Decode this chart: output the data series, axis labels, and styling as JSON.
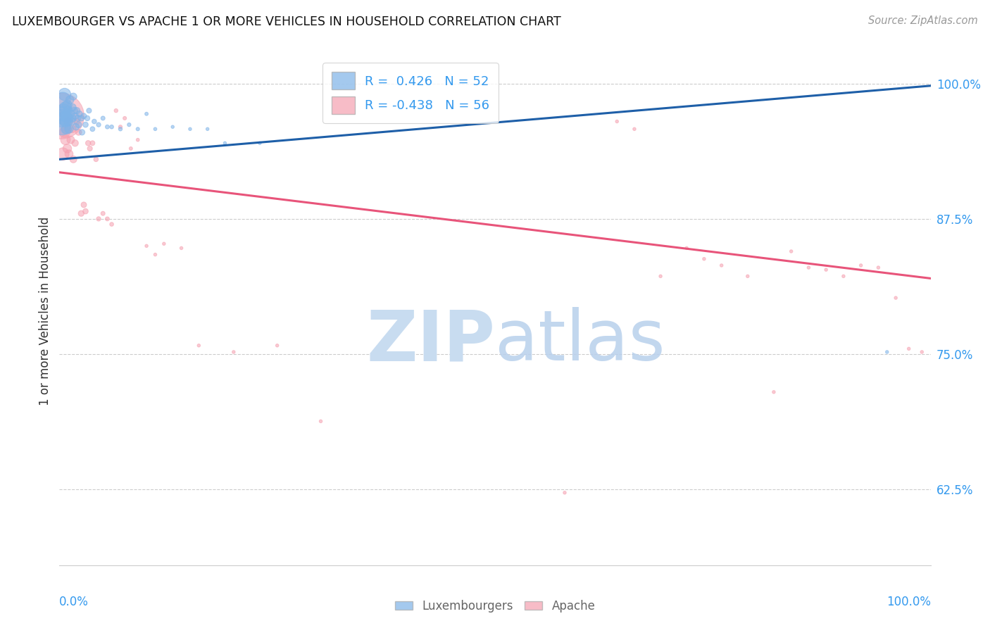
{
  "title": "LUXEMBOURGER VS APACHE 1 OR MORE VEHICLES IN HOUSEHOLD CORRELATION CHART",
  "source": "Source: ZipAtlas.com",
  "ylabel": "1 or more Vehicles in Household",
  "xlim": [
    0.0,
    1.0
  ],
  "ylim": [
    0.555,
    1.025
  ],
  "yticks": [
    0.625,
    0.75,
    0.875,
    1.0
  ],
  "ytick_labels": [
    "62.5%",
    "75.0%",
    "87.5%",
    "100.0%"
  ],
  "legend_r_blue": "0.426",
  "legend_n_blue": "52",
  "legend_r_pink": "-0.438",
  "legend_n_pink": "56",
  "blue_color": "#7EB3E8",
  "pink_color": "#F5A0B0",
  "trend_blue_color": "#1E5FA8",
  "trend_pink_color": "#E8547A",
  "watermark_zip_color": "#C8DCF0",
  "watermark_atlas_color": "#B8D0EC",
  "blue_trend_x0": 0.0,
  "blue_trend_y0": 0.93,
  "blue_trend_x1": 1.0,
  "blue_trend_y1": 0.998,
  "pink_trend_x0": 0.0,
  "pink_trend_y0": 0.918,
  "pink_trend_x1": 1.0,
  "pink_trend_y1": 0.82,
  "blue_points_x": [
    0.002,
    0.003,
    0.004,
    0.004,
    0.005,
    0.005,
    0.006,
    0.007,
    0.007,
    0.008,
    0.008,
    0.009,
    0.01,
    0.01,
    0.011,
    0.011,
    0.012,
    0.013,
    0.014,
    0.015,
    0.015,
    0.016,
    0.017,
    0.018,
    0.019,
    0.02,
    0.021,
    0.022,
    0.023,
    0.025,
    0.026,
    0.028,
    0.03,
    0.032,
    0.034,
    0.038,
    0.04,
    0.045,
    0.05,
    0.055,
    0.06,
    0.07,
    0.08,
    0.09,
    0.1,
    0.11,
    0.13,
    0.15,
    0.17,
    0.19,
    0.23,
    0.95
  ],
  "blue_points_y": [
    0.968,
    0.96,
    0.985,
    0.972,
    0.975,
    0.968,
    0.99,
    0.978,
    0.965,
    0.97,
    0.958,
    0.98,
    0.965,
    0.975,
    0.968,
    0.958,
    0.985,
    0.972,
    0.965,
    0.978,
    0.968,
    0.988,
    0.975,
    0.97,
    0.96,
    0.975,
    0.968,
    0.962,
    0.972,
    0.968,
    0.955,
    0.97,
    0.962,
    0.968,
    0.975,
    0.958,
    0.965,
    0.962,
    0.968,
    0.96,
    0.96,
    0.958,
    0.962,
    0.958,
    0.972,
    0.958,
    0.96,
    0.958,
    0.958,
    0.945,
    0.945,
    0.752
  ],
  "blue_sizes": [
    320,
    280,
    240,
    220,
    200,
    180,
    160,
    140,
    130,
    120,
    110,
    100,
    90,
    85,
    80,
    75,
    70,
    65,
    60,
    58,
    55,
    52,
    50,
    48,
    46,
    44,
    42,
    40,
    38,
    36,
    34,
    32,
    30,
    28,
    26,
    24,
    22,
    20,
    18,
    17,
    16,
    15,
    14,
    13,
    12,
    11,
    10,
    10,
    10,
    10,
    10,
    10
  ],
  "pink_points_x": [
    0.002,
    0.004,
    0.006,
    0.007,
    0.008,
    0.009,
    0.01,
    0.011,
    0.013,
    0.015,
    0.016,
    0.018,
    0.02,
    0.022,
    0.025,
    0.028,
    0.03,
    0.033,
    0.035,
    0.038,
    0.042,
    0.045,
    0.05,
    0.055,
    0.06,
    0.065,
    0.07,
    0.075,
    0.082,
    0.09,
    0.1,
    0.11,
    0.12,
    0.14,
    0.16,
    0.2,
    0.25,
    0.3,
    0.58,
    0.64,
    0.66,
    0.69,
    0.72,
    0.74,
    0.76,
    0.79,
    0.82,
    0.84,
    0.86,
    0.88,
    0.9,
    0.92,
    0.94,
    0.96,
    0.975,
    0.99
  ],
  "pink_points_y": [
    0.97,
    0.935,
    0.955,
    0.948,
    0.958,
    0.94,
    0.965,
    0.935,
    0.948,
    0.958,
    0.93,
    0.945,
    0.965,
    0.955,
    0.88,
    0.888,
    0.882,
    0.945,
    0.94,
    0.945,
    0.93,
    0.875,
    0.88,
    0.875,
    0.87,
    0.975,
    0.96,
    0.968,
    0.94,
    0.948,
    0.85,
    0.842,
    0.852,
    0.848,
    0.758,
    0.752,
    0.758,
    0.688,
    0.622,
    0.965,
    0.958,
    0.822,
    0.848,
    0.838,
    0.832,
    0.822,
    0.715,
    0.845,
    0.83,
    0.828,
    0.822,
    0.832,
    0.83,
    0.802,
    0.755,
    0.752
  ],
  "pink_sizes": [
    2200,
    160,
    120,
    100,
    90,
    80,
    75,
    70,
    62,
    55,
    50,
    45,
    40,
    38,
    35,
    32,
    30,
    28,
    26,
    24,
    22,
    20,
    18,
    17,
    16,
    15,
    14,
    13,
    12,
    11,
    10,
    10,
    10,
    10,
    10,
    10,
    10,
    10,
    10,
    10,
    10,
    10,
    10,
    10,
    10,
    10,
    10,
    10,
    10,
    10,
    10,
    10,
    10,
    10,
    10,
    10
  ]
}
